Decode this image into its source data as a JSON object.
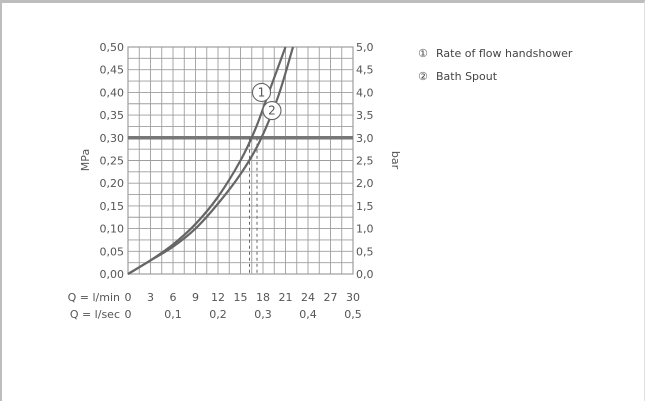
{
  "chart_data": {
    "type": "line",
    "y_left": {
      "label": "MPa",
      "min": 0,
      "max": 0.5,
      "ticks": [
        "0,00",
        "0,05",
        "0,10",
        "0,15",
        "0,20",
        "0,25",
        "0,30",
        "0,35",
        "0,40",
        "0,45",
        "0,50"
      ]
    },
    "y_right": {
      "label": "bar",
      "min": 0,
      "max": 5,
      "ticks": [
        "0,0",
        "0,5",
        "1,0",
        "1,5",
        "2,0",
        "2,5",
        "3,0",
        "3,5",
        "4,0",
        "4,5",
        "5,0"
      ]
    },
    "x_lmin": {
      "label": "Q = l/min",
      "min": 0,
      "max": 30,
      "ticks": [
        "0",
        "3",
        "6",
        "9",
        "12",
        "15",
        "18",
        "21",
        "24",
        "27",
        "30"
      ]
    },
    "x_lsec": {
      "label": "Q = l/sec",
      "ticks": [
        {
          "value": 0,
          "text": "0"
        },
        {
          "value": 0.1,
          "text": "0,1"
        },
        {
          "value": 0.2,
          "text": "0,2"
        },
        {
          "value": 0.3,
          "text": "0,3"
        },
        {
          "value": 0.4,
          "text": "0,4"
        },
        {
          "value": 0.5,
          "text": "0,5"
        }
      ]
    },
    "reference_pressure": {
      "y": 0.3
    },
    "series": [
      {
        "marker": "1",
        "name": "Rate of flow handshower",
        "x": [
          0,
          3,
          6,
          9,
          12,
          15,
          17,
          19,
          21
        ],
        "y": [
          0,
          0.03,
          0.065,
          0.11,
          0.17,
          0.25,
          0.32,
          0.41,
          0.5
        ],
        "label_at": [
          17.8,
          0.4
        ]
      },
      {
        "marker": "2",
        "name": "Bath Spout",
        "x": [
          0,
          3,
          6,
          9,
          12,
          15,
          17.5,
          20,
          22
        ],
        "y": [
          0,
          0.03,
          0.06,
          0.1,
          0.155,
          0.22,
          0.29,
          0.39,
          0.5
        ],
        "label_at": [
          19.2,
          0.36
        ]
      }
    ],
    "reference_flows": [
      {
        "x": 16.2,
        "y": 0.3
      },
      {
        "x": 17.2,
        "y": 0.3
      }
    ],
    "grid": true
  },
  "legend": [
    {
      "marker": "①",
      "text": "Rate of flow handshower"
    },
    {
      "marker": "②",
      "text": "Bath Spout"
    }
  ],
  "colors": {
    "grid": "#9e9e9e",
    "curve": "#666666",
    "reference_line": "#777777",
    "text": "#555555"
  }
}
